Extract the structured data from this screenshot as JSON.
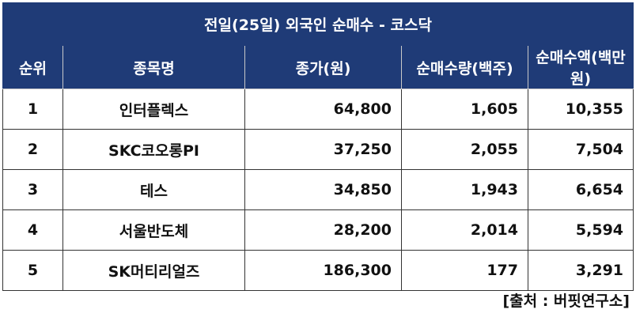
{
  "title": "전일(25일) 외국인 순매수 - 코스닥",
  "columns": [
    "순위",
    "종목명",
    "종가(원)",
    "순매수량(백주)",
    "순매수액(백만원)"
  ],
  "rows": [
    {
      "rank": "1",
      "name": "인터플렉스",
      "close": "64,800",
      "net_qty": "1,605",
      "net_amount": "10,355"
    },
    {
      "rank": "2",
      "name": "SKC코오롱PI",
      "close": "37,250",
      "net_qty": "2,055",
      "net_amount": "7,504"
    },
    {
      "rank": "3",
      "name": "테스",
      "close": "34,850",
      "net_qty": "1,943",
      "net_amount": "6,654"
    },
    {
      "rank": "4",
      "name": "서울반도체",
      "close": "28,200",
      "net_qty": "2,014",
      "net_amount": "5,594"
    },
    {
      "rank": "5",
      "name": "SK머티리얼즈",
      "close": "186,300",
      "net_qty": "177",
      "net_amount": "3,291"
    }
  ],
  "source": "[출처 : 버핏연구소]",
  "colors": {
    "header_bg": "#1f3b77",
    "header_text": "#ffffff",
    "border": "#333333"
  }
}
